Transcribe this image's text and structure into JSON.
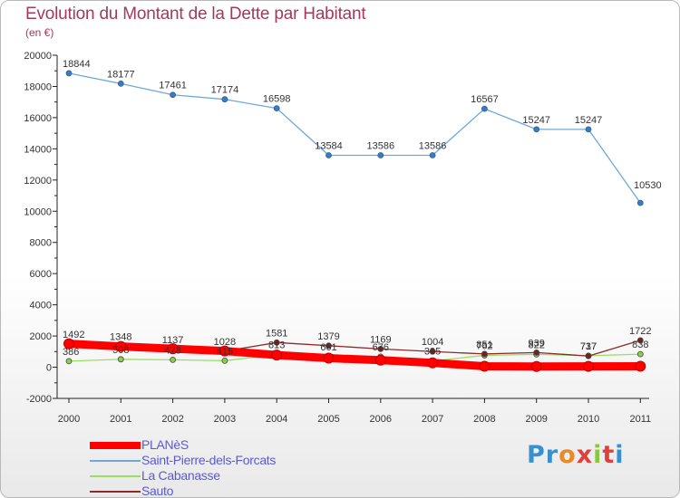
{
  "title": "Evolution du Montant de la Dette par Habitant",
  "subtitle": "(en €)",
  "brand": {
    "letters": [
      "P",
      "r",
      "o",
      "x",
      "i",
      "t",
      "i"
    ],
    "colors": [
      "#3a8fd0",
      "#3a8fd0",
      "#e88a2a",
      "#e0403a",
      "#8cc63f",
      "#e0403a",
      "#3a8fd0"
    ]
  },
  "chart_data": {
    "type": "line",
    "x": [
      "2000",
      "2001",
      "2002",
      "2003",
      "2004",
      "2005",
      "2006",
      "2007",
      "2008",
      "2009",
      "2010",
      "2011"
    ],
    "ylim": [
      -2000,
      20000
    ],
    "yticks": [
      -2000,
      0,
      2000,
      4000,
      6000,
      8000,
      10000,
      12000,
      14000,
      16000,
      18000,
      20000
    ],
    "grid": false,
    "legend_position": "bottom-left",
    "series": [
      {
        "name": "PLANèS",
        "color": "#ff0000",
        "values": [
          1503,
          1328,
          1182,
          1038,
          780,
          580,
          450,
          280,
          58,
          48,
          52,
          60
        ],
        "labels": [
          "",
          "",
          "",
          "",
          "",
          "",
          "",
          "",
          "",
          "",
          "",
          ""
        ]
      },
      {
        "name": "Saint-Pierre-dels-Forcats",
        "color": "#6fa8d8",
        "values": [
          18844,
          18177,
          17461,
          17174,
          16598,
          13584,
          13586,
          13586,
          16567,
          15247,
          15247,
          10530
        ],
        "labels": [
          "18844",
          "18177",
          "17461",
          "17174",
          "16598",
          "13584",
          "13586",
          "13586",
          "16567",
          "15247",
          "15247",
          "10530"
        ]
      },
      {
        "name": "La Cabanasse",
        "color": "#99dd66",
        "values": [
          386,
          508,
          473,
          415,
          813,
          661,
          676,
          395,
          762,
          822,
          737,
          838
        ],
        "labels": [
          "386",
          "508",
          "473",
          "415",
          "813",
          "661",
          "676",
          "395",
          "762",
          "822",
          "737",
          "838"
        ]
      },
      {
        "name": "Sauto",
        "color": "#8b2a2a",
        "values": [
          1492,
          1348,
          1137,
          1028,
          1581,
          1379,
          1169,
          1004,
          851,
          939,
          717,
          1722
        ],
        "labels": [
          "1492",
          "1348",
          "1137",
          "1028",
          "1581",
          "1379",
          "1169",
          "1004",
          "851",
          "939",
          "717",
          "1722"
        ]
      }
    ]
  }
}
